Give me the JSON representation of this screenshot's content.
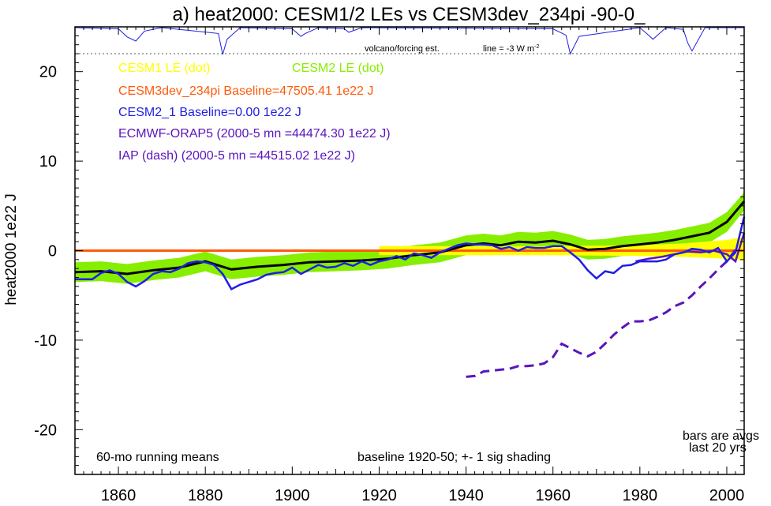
{
  "chart_data": {
    "type": "line",
    "title": "a) heat2000: CESM1/2 LEs vs CESM3dev_234pi -90-0_",
    "ylabel": "heat2000 1e22 J",
    "xlabel": "",
    "xlim": [
      1850,
      2004
    ],
    "ylim": [
      -25,
      25
    ],
    "x_ticks": [
      1860,
      1880,
      1900,
      1920,
      1940,
      1960,
      1980,
      2000
    ],
    "y_ticks": [
      -20,
      -10,
      0,
      10,
      20
    ],
    "grid": false,
    "legend": [
      {
        "text": "CESM1 LE (dot)",
        "color": "#ffff00"
      },
      {
        "text": "CESM2 LE (dot)",
        "color": "#88ee00"
      },
      {
        "text": "CESM3dev_234pi Baseline=47505.41 1e22 J",
        "color": "#ff5a0a"
      },
      {
        "text": "CESM2_1 Baseline=0.00 1e22 J",
        "color": "#1e1ee6"
      },
      {
        "text": "ECMWF-ORAP5 (2000-5 mn =44474.30 1e22 J)",
        "color": "#5a14be"
      },
      {
        "text": "IAP (dash) (2000-5 mn =44515.02 1e22 J)",
        "color": "#5a14be"
      }
    ],
    "annotations": {
      "volcano": "volcano/forcing est.",
      "line_note": "line = -3 W m",
      "line_note_sup": "-2",
      "running_means": "60-mo running means",
      "baseline": "baseline 1920-50; +- 1 sig shading",
      "bars_1": "bars are avgs",
      "bars_2": "last 20 yrs"
    },
    "series": [
      {
        "name": "CESM3dev_234pi",
        "color": "#ff5a0a",
        "x": [
          1850,
          2004
        ],
        "y": [
          0,
          0
        ]
      },
      {
        "name": "CESM2_1",
        "color": "#1e1ee6",
        "x": [
          1850,
          1854,
          1856,
          1858,
          1860,
          1862,
          1864,
          1866,
          1868,
          1870,
          1872,
          1874,
          1876,
          1878,
          1880,
          1882,
          1884,
          1886,
          1888,
          1890,
          1892,
          1894,
          1896,
          1898,
          1900,
          1902,
          1904,
          1906,
          1908,
          1910,
          1912,
          1914,
          1916,
          1918,
          1920,
          1922,
          1924,
          1926,
          1928,
          1930,
          1932,
          1934,
          1936,
          1938,
          1940,
          1942,
          1944,
          1946,
          1948,
          1950,
          1952,
          1954,
          1956,
          1958,
          1960,
          1962,
          1964,
          1966,
          1968,
          1970,
          1972,
          1974,
          1976,
          1978,
          1980,
          1982,
          1984,
          1986,
          1988,
          1990,
          1992,
          1994,
          1996,
          1998,
          2000,
          2002,
          2004
        ],
        "y": [
          -3.2,
          -3.2,
          -2.5,
          -2.2,
          -2.6,
          -3.5,
          -4.0,
          -3.4,
          -2.6,
          -2.3,
          -2.4,
          -2.0,
          -1.4,
          -1.2,
          -1.3,
          -1.6,
          -2.6,
          -4.3,
          -3.8,
          -3.5,
          -3.2,
          -2.7,
          -2.5,
          -2.4,
          -1.9,
          -2.6,
          -2.1,
          -1.6,
          -1.9,
          -1.8,
          -1.4,
          -1.7,
          -1.2,
          -1.6,
          -1.2,
          -1.0,
          -0.6,
          -1.0,
          -0.3,
          -0.5,
          -0.8,
          -0.2,
          0.2,
          0.6,
          0.8,
          0.7,
          0.7,
          0.6,
          0.2,
          0.4,
          0.0,
          0.4,
          0.3,
          0.3,
          0.5,
          0.5,
          -0.2,
          -1.0,
          -2.2,
          -3.1,
          -2.3,
          -2.5,
          -1.7,
          -1.6,
          -1.2,
          -1.2,
          -1.2,
          -1.0,
          -0.4,
          -0.2,
          0.2,
          0.1,
          -0.2,
          0.3,
          -1.2,
          -0.2,
          3.8
        ]
      },
      {
        "name": "ECMWF-ORAP5",
        "color": "#5a14be",
        "x": [
          1979,
          1982,
          1985,
          1988,
          1991,
          1994,
          1997,
          2000,
          2002,
          2004
        ],
        "y": [
          -1.2,
          -0.9,
          -0.7,
          -0.4,
          -0.1,
          -0.2,
          0.0,
          -0.4,
          -1.2,
          2.0
        ]
      },
      {
        "name": "IAP",
        "color": "#5a14be",
        "dash": true,
        "x": [
          1940,
          1942,
          1944,
          1946,
          1948,
          1950,
          1952,
          1954,
          1956,
          1958,
          1960,
          1962,
          1964,
          1966,
          1968,
          1970,
          1972,
          1974,
          1976,
          1978,
          1980,
          1982,
          1984,
          1986,
          1988,
          1990,
          1992,
          1994,
          1996,
          1998,
          2000,
          2002
        ],
        "y": [
          -14.1,
          -14.0,
          -13.5,
          -13.4,
          -13.3,
          -13.2,
          -12.9,
          -12.9,
          -12.8,
          -12.6,
          -11.9,
          -10.4,
          -10.9,
          -11.4,
          -11.8,
          -11.3,
          -10.4,
          -9.4,
          -8.6,
          -7.9,
          -7.9,
          -7.8,
          -7.4,
          -6.9,
          -6.2,
          -5.8,
          -5.0,
          -4.0,
          -3.1,
          -2.1,
          -1.2,
          0.1
        ]
      },
      {
        "name": "CESM1 LE mean",
        "color": "#000000",
        "x": [
          1850,
          1856,
          1862,
          1868,
          1874,
          1880,
          1886,
          1892,
          1898,
          1904,
          1910,
          1916,
          1922,
          1928,
          1934,
          1940,
          1944,
          1948,
          1952,
          1956,
          1960,
          1964,
          1968,
          1972,
          1976,
          1980,
          1984,
          1988,
          1992,
          1996,
          2000,
          2004
        ],
        "y": [
          -2.4,
          -2.3,
          -2.6,
          -2.2,
          -1.9,
          -1.2,
          -2.1,
          -1.8,
          -1.6,
          -1.3,
          -1.2,
          -1.1,
          -0.9,
          -0.5,
          -0.2,
          0.6,
          0.8,
          0.6,
          1.0,
          0.9,
          1.1,
          0.7,
          0.1,
          0.2,
          0.5,
          0.7,
          0.9,
          1.2,
          1.6,
          2.0,
          3.2,
          5.5
        ]
      },
      {
        "name": "CESM2 LE spread",
        "color": "#88ee00",
        "x": [
          1850,
          1856,
          1862,
          1868,
          1874,
          1880,
          1886,
          1892,
          1898,
          1904,
          1910,
          1916,
          1922,
          1928,
          1934,
          1940,
          1944,
          1948,
          1952,
          1956,
          1960,
          1964,
          1968,
          1972,
          1976,
          1980,
          1984,
          1988,
          1992,
          1996,
          2000,
          2004
        ],
        "upper": [
          -1.3,
          -1.2,
          -1.5,
          -1.1,
          -0.8,
          -0.1,
          -1.0,
          -0.7,
          -0.5,
          -0.2,
          -0.1,
          0.0,
          0.2,
          0.6,
          0.9,
          1.7,
          1.9,
          1.7,
          2.1,
          2.0,
          2.2,
          1.8,
          1.2,
          1.3,
          1.6,
          1.8,
          2.0,
          2.3,
          2.7,
          3.1,
          4.3,
          6.5
        ],
        "lower": [
          -3.5,
          -3.4,
          -3.7,
          -3.3,
          -3.0,
          -2.3,
          -3.2,
          -2.9,
          -2.7,
          -2.4,
          -2.3,
          -2.2,
          -2.0,
          -1.6,
          -1.3,
          -0.5,
          -0.3,
          -0.5,
          -0.1,
          -0.2,
          0.0,
          -0.4,
          -1.0,
          -0.9,
          -0.6,
          -0.4,
          -0.2,
          0.1,
          0.5,
          0.9,
          2.1,
          4.5
        ]
      },
      {
        "name": "CESM1 LE spread",
        "color": "#ffff00",
        "x": [
          1920,
          1940,
          1960,
          1980,
          1990,
          2000,
          2004
        ],
        "upper": [
          0.5,
          0.5,
          0.5,
          0.6,
          0.8,
          1.2,
          1.5
        ],
        "lower": [
          -0.5,
          -0.5,
          -0.5,
          -0.6,
          -0.7,
          -0.9,
          -1.1
        ]
      },
      {
        "name": "volcano/forcing est.",
        "color": "#1e1ee6",
        "x": [
          1850,
          1860,
          1862,
          1864,
          1866,
          1870,
          1883,
          1884,
          1885,
          1888,
          1900,
          1902,
          1903,
          1906,
          1912,
          1913,
          1916,
          1960,
          1963,
          1964,
          1966,
          1980,
          1982,
          1983,
          1986,
          1990,
          1991,
          1992,
          1995,
          2004
        ],
        "y": [
          0,
          -0.2,
          -1.6,
          -2.3,
          -0.6,
          0,
          -1.0,
          -4.6,
          -2.0,
          0,
          -0.2,
          -1.5,
          -1.0,
          0,
          -0.2,
          -0.8,
          0,
          -0.2,
          -1.3,
          -4.5,
          -1.5,
          0,
          -1.3,
          -2.0,
          0,
          -0.3,
          -2.6,
          -4.0,
          0,
          0
        ]
      }
    ]
  }
}
